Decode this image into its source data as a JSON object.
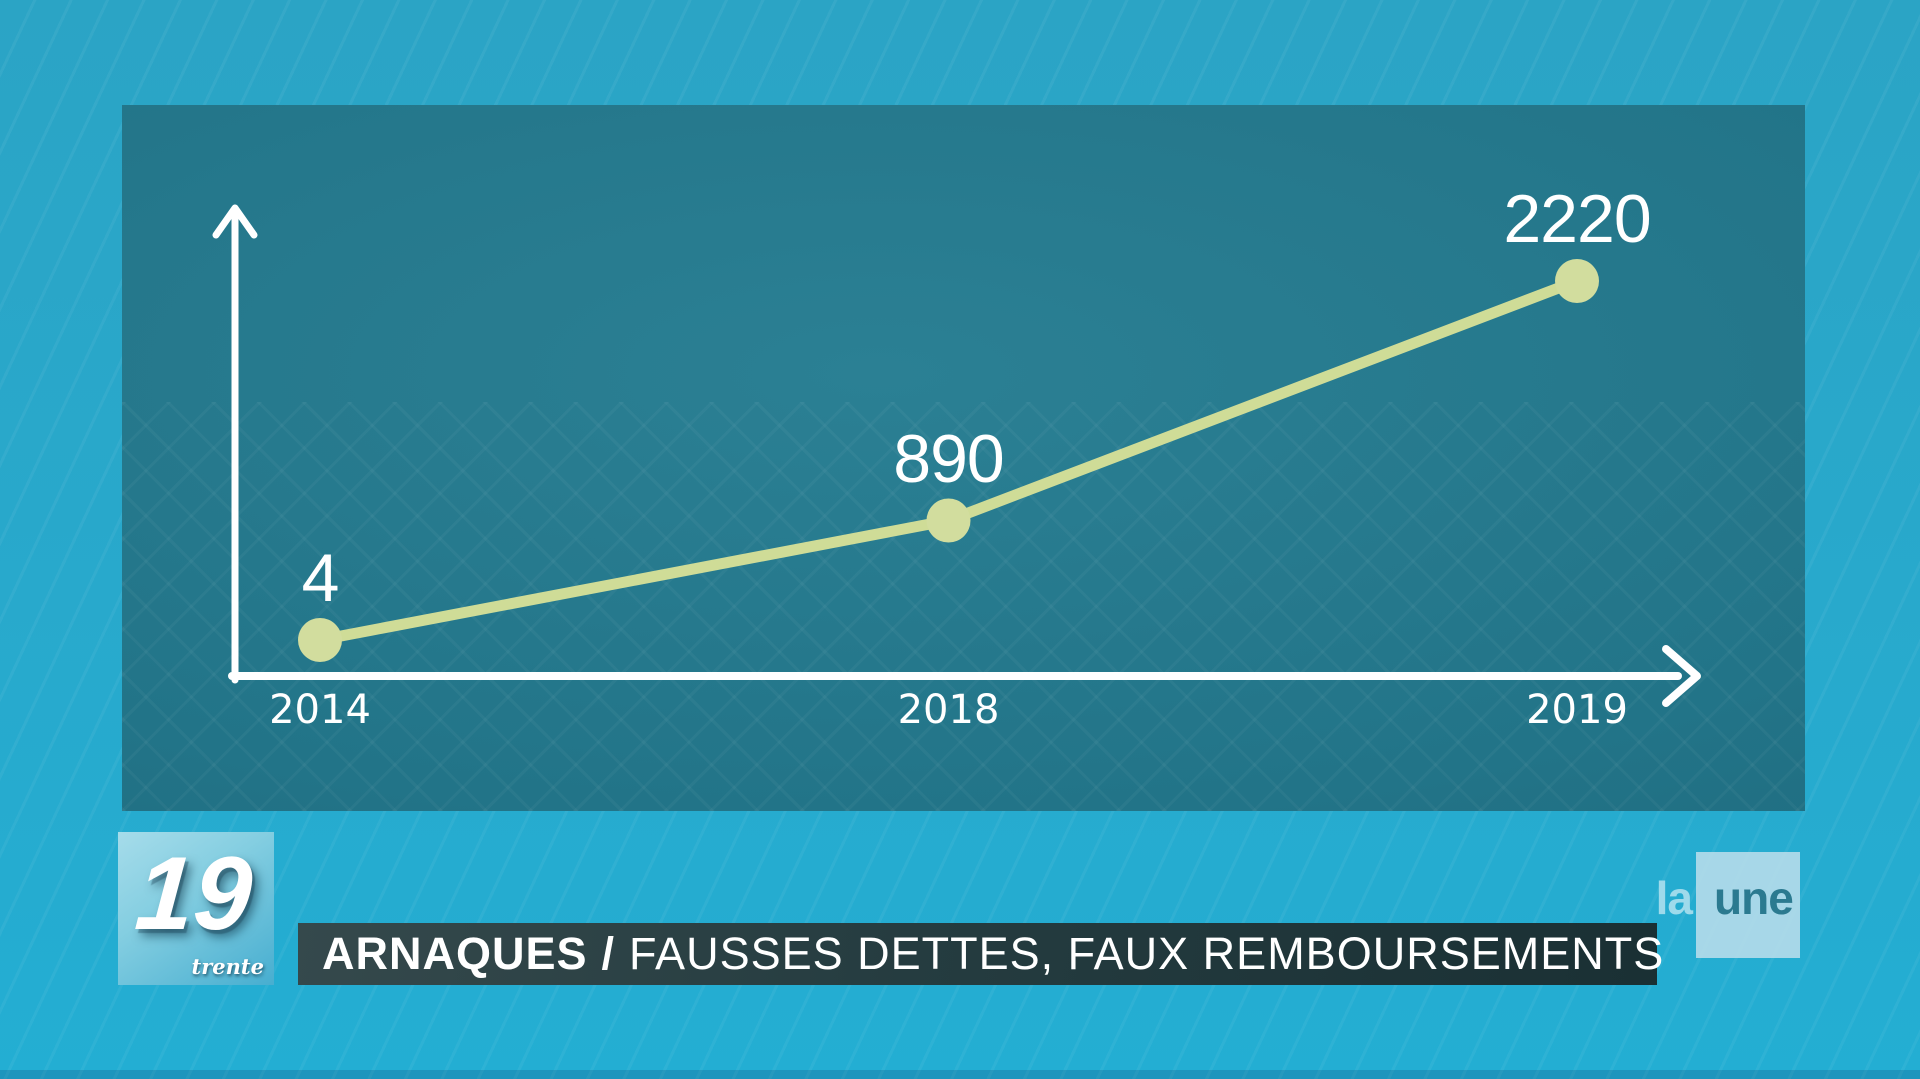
{
  "chart_data": {
    "type": "line",
    "x": [
      "2014",
      "2018",
      "2019"
    ],
    "values": [
      4,
      890,
      2220
    ],
    "point_labels": [
      "4",
      "890",
      "2220"
    ],
    "title": "",
    "xlabel": "",
    "ylabel": "",
    "grid": false,
    "legend": false,
    "line_color": "#cfdc97",
    "dot_color": "#d2dd9e",
    "axis_color": "#ffffff",
    "label_color": "#ffffff"
  },
  "banner": {
    "topic": "ARNAQUES",
    "separator": "/",
    "headline": "FAUSSES DETTES, FAUX REMBOURSEMENTS"
  },
  "branding": {
    "program_logo": {
      "number": "19",
      "word": "trente"
    },
    "channel_logo": {
      "first": "la",
      "second": "une"
    }
  },
  "colors": {
    "background": "#28a9cc",
    "chart_panel": "#227488",
    "banner_background": "#253c40",
    "logo_blue": "#84cee1",
    "accent_line": "#cfdc97"
  }
}
